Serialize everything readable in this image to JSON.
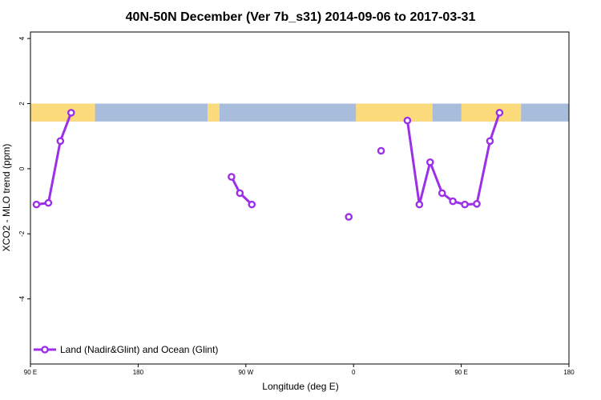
{
  "chart_data": {
    "type": "line",
    "title": "40N-50N December (Ver 7b_s31)   2014-09-06 to 2017-03-31",
    "xlabel": "Longitude (deg E)",
    "ylabel": "XCO2 - MLO trend (ppm)",
    "xlim": [
      90,
      540
    ],
    "ylim": [
      -6,
      4.2
    ],
    "x_ticks": [
      {
        "value": 90,
        "label": "90 E"
      },
      {
        "value": 180,
        "label": "180"
      },
      {
        "value": 270,
        "label": "90 W"
      },
      {
        "value": 360,
        "label": "0"
      },
      {
        "value": 450,
        "label": "90 E"
      },
      {
        "value": 540,
        "label": "180"
      }
    ],
    "y_ticks": [
      {
        "value": 4,
        "label": "4"
      },
      {
        "value": 2,
        "label": "2"
      },
      {
        "value": 0,
        "label": "0"
      },
      {
        "value": -2,
        "label": "-2"
      },
      {
        "value": -4,
        "label": "-4"
      }
    ],
    "map_band": {
      "y_range": [
        1.45,
        2.0
      ],
      "land_color": "#fbdb7c",
      "ocean_color": "#a8bcdc",
      "land_segments": [
        [
          90,
          144
        ],
        [
          238,
          248
        ],
        [
          362,
          426
        ],
        [
          450,
          500
        ]
      ]
    },
    "series": [
      {
        "name": "Land (Nadir&Glint) and Ocean (Glint)",
        "color": "#9b30e8",
        "segments": [
          [
            [
              95,
              -1.1
            ],
            [
              105,
              -1.05
            ],
            [
              115,
              0.85
            ],
            [
              124,
              1.72
            ]
          ],
          [
            [
              258,
              -0.25
            ],
            [
              265,
              -0.75
            ],
            [
              275,
              -1.1
            ]
          ],
          [
            [
              356,
              -1.48
            ]
          ],
          [
            [
              383,
              0.55
            ]
          ],
          [
            [
              405,
              1.48
            ],
            [
              415,
              -1.1
            ],
            [
              424,
              0.2
            ],
            [
              434,
              -0.75
            ],
            [
              443,
              -1.0
            ],
            [
              453,
              -1.1
            ],
            [
              463,
              -1.08
            ],
            [
              474,
              0.85
            ],
            [
              482,
              1.72
            ]
          ]
        ]
      }
    ],
    "legend_position": "bottom-left",
    "grid": false
  }
}
